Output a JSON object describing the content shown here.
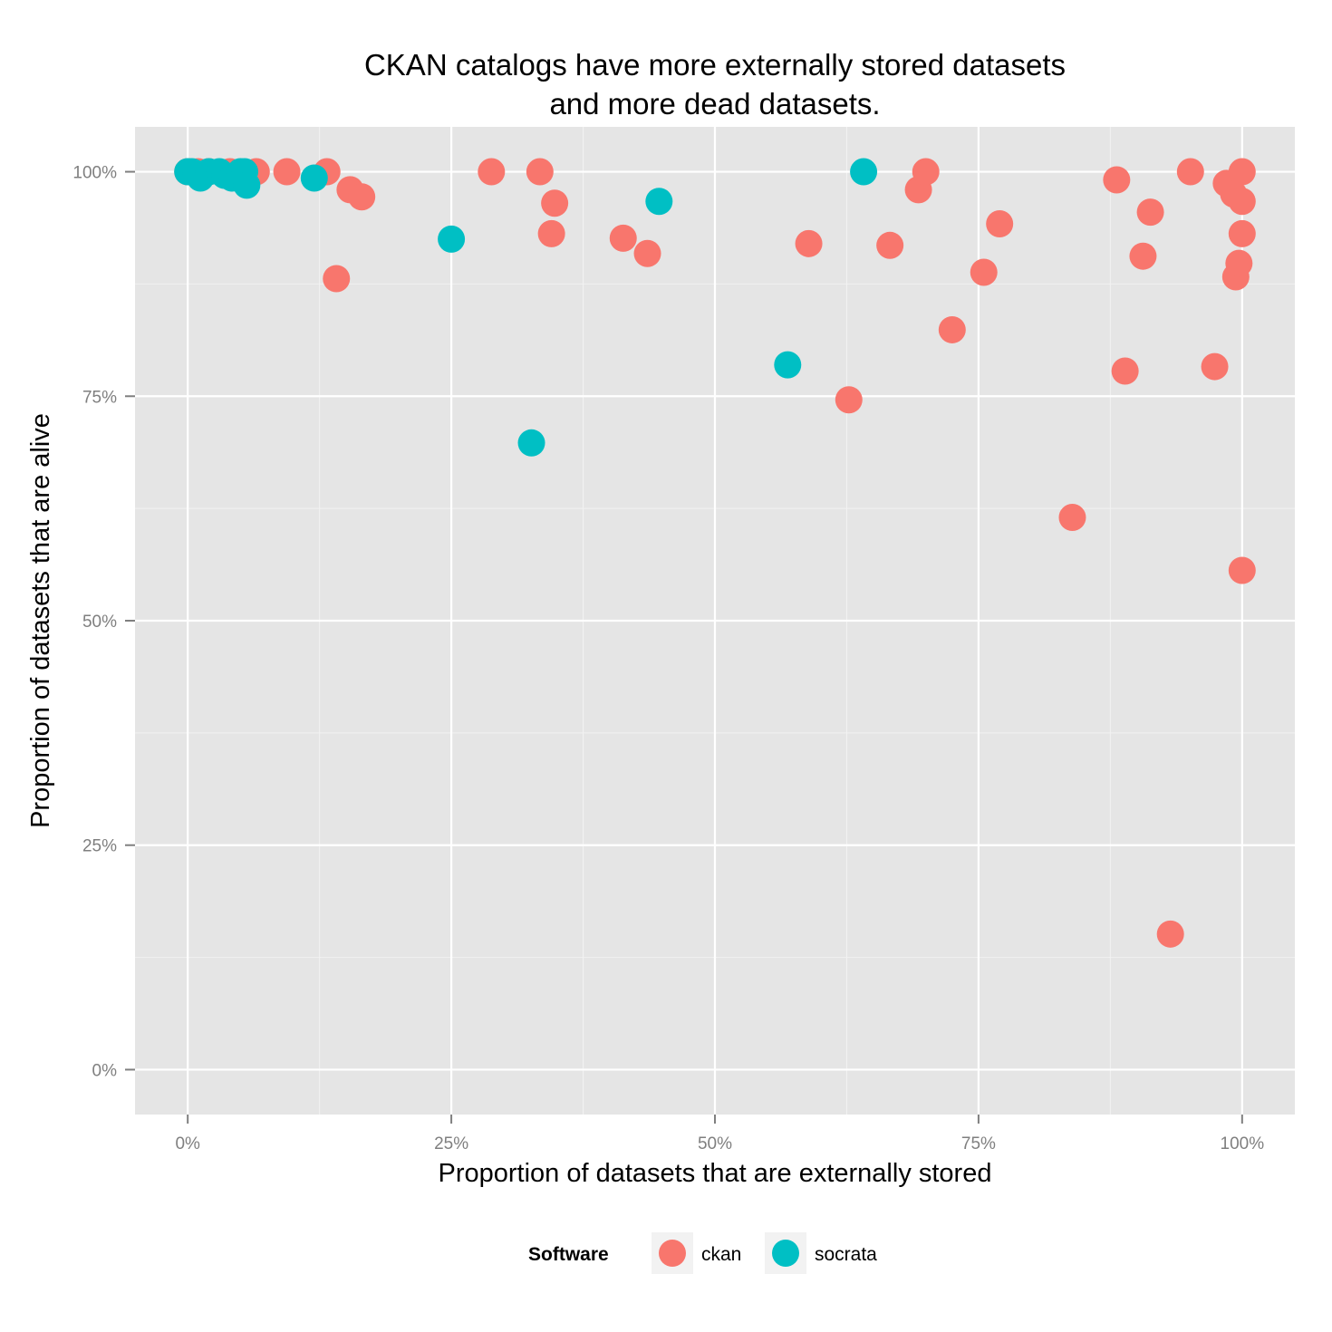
{
  "chart_data": {
    "type": "scatter",
    "title_line1": "CKAN catalogs have more externally stored datasets",
    "title_line2": "and more dead datasets.",
    "xlabel": "Proportion of datasets that are externally stored",
    "ylabel": "Proportion of datasets that are alive",
    "xlim": [
      -0.05,
      1.05
    ],
    "ylim": [
      -0.05,
      1.05
    ],
    "x_ticks": [
      0,
      0.25,
      0.5,
      0.75,
      1.0
    ],
    "x_tick_labels": [
      "0%",
      "25%",
      "50%",
      "75%",
      "100%"
    ],
    "y_ticks": [
      0,
      0.25,
      0.5,
      0.75,
      1.0
    ],
    "y_tick_labels": [
      "0%",
      "25%",
      "50%",
      "75%",
      "100%"
    ],
    "grid": true,
    "legend": {
      "title": "Software",
      "position": "bottom",
      "entries": [
        {
          "label": "ckan",
          "color": "#F8766D"
        },
        {
          "label": "socrata",
          "color": "#00BFC4"
        }
      ]
    },
    "series": [
      {
        "name": "ckan",
        "color": "#F8766D",
        "points": [
          [
            0.0,
            1.0
          ],
          [
            0.01,
            1.0
          ],
          [
            0.02,
            1.0
          ],
          [
            0.04,
            1.0
          ],
          [
            0.065,
            1.0
          ],
          [
            0.094,
            1.0
          ],
          [
            0.132,
            1.0
          ],
          [
            0.154,
            0.98
          ],
          [
            0.165,
            0.972
          ],
          [
            0.141,
            0.881
          ],
          [
            0.288,
            1.0
          ],
          [
            0.334,
            1.0
          ],
          [
            0.348,
            0.965
          ],
          [
            0.345,
            0.931
          ],
          [
            0.413,
            0.926
          ],
          [
            0.436,
            0.909
          ],
          [
            0.589,
            0.92
          ],
          [
            0.627,
            0.746
          ],
          [
            0.666,
            0.918
          ],
          [
            0.693,
            0.98
          ],
          [
            0.7,
            1.0
          ],
          [
            0.725,
            0.824
          ],
          [
            0.755,
            0.888
          ],
          [
            0.77,
            0.942
          ],
          [
            0.839,
            0.615
          ],
          [
            0.881,
            0.991
          ],
          [
            0.889,
            0.778
          ],
          [
            0.906,
            0.906
          ],
          [
            0.913,
            0.955
          ],
          [
            0.932,
            0.151
          ],
          [
            0.951,
            1.0
          ],
          [
            0.974,
            0.783
          ],
          [
            0.985,
            0.987
          ],
          [
            0.992,
            0.975
          ],
          [
            0.994,
            0.883
          ],
          [
            0.997,
            0.898
          ],
          [
            1.0,
            1.0
          ],
          [
            1.0,
            0.967
          ],
          [
            1.0,
            0.931
          ],
          [
            1.0,
            0.556
          ]
        ]
      },
      {
        "name": "socrata",
        "color": "#00BFC4",
        "points": [
          [
            0.0,
            1.0
          ],
          [
            0.004,
            1.0
          ],
          [
            0.008,
            0.998
          ],
          [
            0.012,
            0.993
          ],
          [
            0.02,
            1.0
          ],
          [
            0.03,
            1.0
          ],
          [
            0.035,
            0.996
          ],
          [
            0.042,
            0.993
          ],
          [
            0.05,
            1.0
          ],
          [
            0.054,
            1.0
          ],
          [
            0.056,
            0.985
          ],
          [
            0.12,
            0.993
          ],
          [
            0.25,
            0.925
          ],
          [
            0.326,
            0.698
          ],
          [
            0.447,
            0.967
          ],
          [
            0.569,
            0.785
          ],
          [
            0.641,
            1.0
          ]
        ]
      }
    ]
  }
}
